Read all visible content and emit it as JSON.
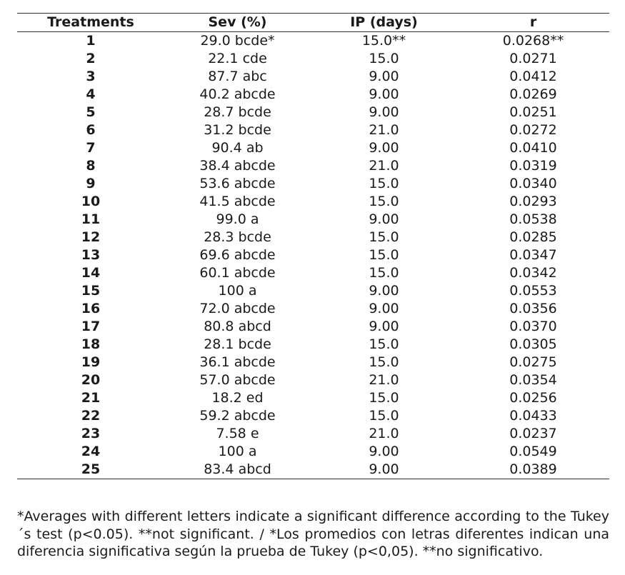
{
  "table": {
    "headers": [
      "Treatments",
      "Sev (%)",
      "IP (days)",
      "r"
    ],
    "rows": [
      [
        "1",
        "29.0 bcde*",
        "15.0**",
        "0.0268**"
      ],
      [
        "2",
        "22.1 cde",
        "15.0",
        "0.0271"
      ],
      [
        "3",
        "87.7 abc",
        "9.00",
        "0.0412"
      ],
      [
        "4",
        "40.2 abcde",
        "9.00",
        "0.0269"
      ],
      [
        "5",
        "28.7 bcde",
        "9.00",
        "0.0251"
      ],
      [
        "6",
        "31.2 bcde",
        "21.0",
        "0.0272"
      ],
      [
        "7",
        "90.4 ab",
        "9.00",
        "0.0410"
      ],
      [
        "8",
        "38.4 abcde",
        "21.0",
        "0.0319"
      ],
      [
        "9",
        "53.6 abcde",
        "15.0",
        "0.0340"
      ],
      [
        "10",
        "41.5 abcde",
        "15.0",
        "0.0293"
      ],
      [
        "11",
        "99.0 a",
        "9.00",
        "0.0538"
      ],
      [
        "12",
        "28.3 bcde",
        "15.0",
        "0.0285"
      ],
      [
        "13",
        "69.6 abcde",
        "15.0",
        "0.0347"
      ],
      [
        "14",
        "60.1 abcde",
        "15.0",
        "0.0342"
      ],
      [
        "15",
        "100 a",
        "9.00",
        "0.0553"
      ],
      [
        "16",
        "72.0 abcde",
        "9.00",
        "0.0356"
      ],
      [
        "17",
        "80.8 abcd",
        "9.00",
        "0.0370"
      ],
      [
        "18",
        "28.1 bcde",
        "15.0",
        "0.0305"
      ],
      [
        "19",
        "36.1 abcde",
        "15.0",
        "0.0275"
      ],
      [
        "20",
        "57.0 abcde",
        "21.0",
        "0.0354"
      ],
      [
        "21",
        "18.2 ed",
        "15.0",
        "0.0256"
      ],
      [
        "22",
        "59.2 abcde",
        "15.0",
        "0.0433"
      ],
      [
        "23",
        "7.58 e",
        "21.0",
        "0.0237"
      ],
      [
        "24",
        "100 a",
        "9.00",
        "0.0549"
      ],
      [
        "25",
        "83.4 abcd",
        "9.00",
        "0.0389"
      ]
    ]
  },
  "footnote": "*Averages with different letters indicate a significant difference according to the Tukey´s test (p<0.05). **not significant. / *Los promedios con letras diferentes indican una diferencia significativa según la prueba de Tukey (p<0,05). **no significativo."
}
